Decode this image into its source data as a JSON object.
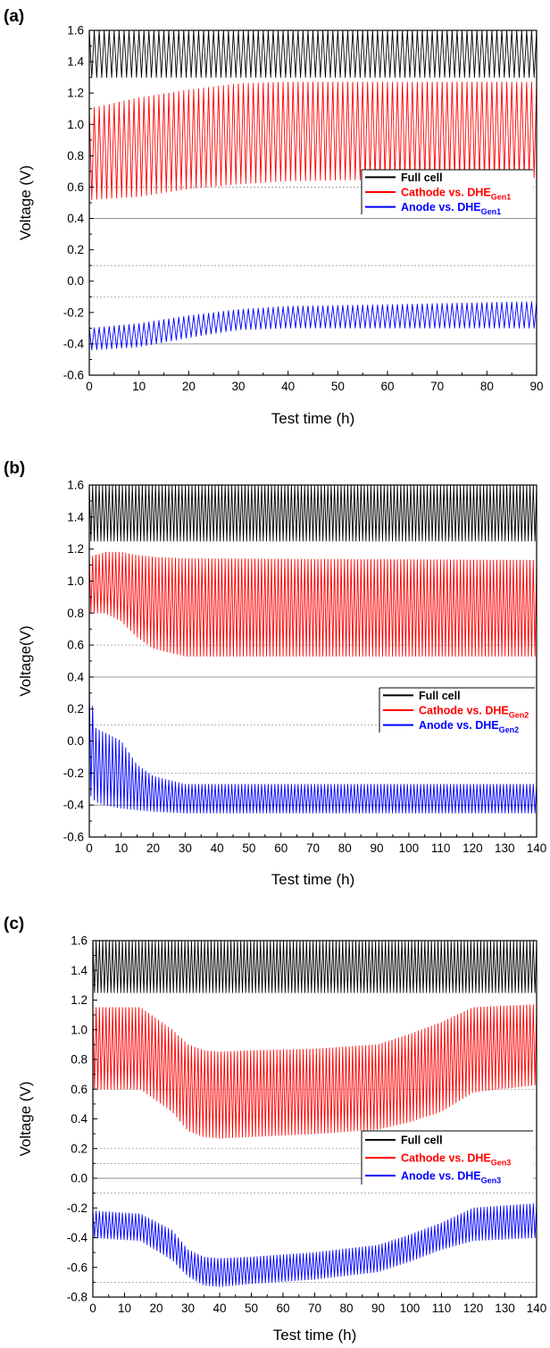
{
  "chart_data": [
    {
      "type": "line",
      "panel_label": "(a)",
      "xlabel": "Test time (h)",
      "ylabel": "Voltage (V)",
      "xlim": [
        0,
        90
      ],
      "ylim": [
        -0.6,
        1.6
      ],
      "xticks": [
        "0",
        "10",
        "20",
        "30",
        "40",
        "50",
        "60",
        "70",
        "80",
        "90"
      ],
      "yticks": [
        "-0.6",
        "-0.4",
        "-0.2",
        "0.0",
        "0.2",
        "0.4",
        "0.6",
        "0.8",
        "1.0",
        "1.2",
        "1.4",
        "1.6"
      ],
      "reference_lines_dotted": [
        -0.1,
        0.1,
        0.6
      ],
      "reference_lines_solid": [
        -0.4,
        0.4
      ],
      "legend_position": "right",
      "cycles": 90,
      "series": [
        {
          "name": "Full cell",
          "subscript": "",
          "color": "#000000",
          "envelope_x": [
            0,
            90
          ],
          "upper": [
            1.6,
            1.6
          ],
          "lower": [
            1.3,
            1.3
          ]
        },
        {
          "name": "Cathode vs. DHE",
          "subscript": "Gen1",
          "color": "#ff0000",
          "envelope_x": [
            0,
            10,
            20,
            30,
            40,
            60,
            90
          ],
          "upper": [
            1.1,
            1.17,
            1.22,
            1.26,
            1.27,
            1.27,
            1.27
          ],
          "lower": [
            0.52,
            0.54,
            0.59,
            0.62,
            0.64,
            0.65,
            0.66
          ]
        },
        {
          "name": "Anode vs. DHE",
          "subscript": "Gen1",
          "color": "#0000ff",
          "envelope_x": [
            0,
            10,
            20,
            30,
            40,
            60,
            90
          ],
          "upper": [
            -0.3,
            -0.27,
            -0.22,
            -0.18,
            -0.16,
            -0.15,
            -0.13
          ],
          "lower": [
            -0.44,
            -0.42,
            -0.36,
            -0.31,
            -0.3,
            -0.3,
            -0.3
          ]
        }
      ]
    },
    {
      "type": "line",
      "panel_label": "(b)",
      "xlabel": "Test time (h)",
      "ylabel": "Voltage(V)",
      "xlim": [
        0,
        140
      ],
      "ylim": [
        -0.6,
        1.6
      ],
      "xticks": [
        "0",
        "10",
        "20",
        "30",
        "40",
        "50",
        "60",
        "70",
        "80",
        "90",
        "100",
        "110",
        "120",
        "130",
        "140"
      ],
      "yticks": [
        "-0.6",
        "-0.4",
        "-0.2",
        "0.0",
        "0.2",
        "0.4",
        "0.6",
        "0.8",
        "1.0",
        "1.2",
        "1.4",
        "1.6"
      ],
      "reference_lines_dotted": [
        -0.2,
        0.1,
        0.6
      ],
      "reference_lines_solid": [
        -0.4,
        0.4
      ],
      "legend_position": "right",
      "cycles": 135,
      "series": [
        {
          "name": "Full cell",
          "subscript": "",
          "color": "#000000",
          "envelope_x": [
            0,
            140
          ],
          "upper": [
            1.6,
            1.6
          ],
          "lower": [
            1.25,
            1.25
          ]
        },
        {
          "name": "Cathode vs. DHE",
          "subscript": "Gen2",
          "color": "#ff0000",
          "envelope_x": [
            0,
            5,
            10,
            15,
            20,
            30,
            140
          ],
          "upper": [
            1.15,
            1.18,
            1.18,
            1.16,
            1.15,
            1.14,
            1.13
          ],
          "lower": [
            0.8,
            0.8,
            0.75,
            0.65,
            0.58,
            0.53,
            0.53
          ]
        },
        {
          "name": "Anode vs. DHE",
          "subscript": "Gen2",
          "color": "#0000ff",
          "envelope_x": [
            0,
            2,
            5,
            10,
            15,
            20,
            30,
            140
          ],
          "upper": [
            0.37,
            0.08,
            0.05,
            0.0,
            -0.15,
            -0.22,
            -0.27,
            -0.27
          ],
          "lower": [
            -0.33,
            -0.38,
            -0.4,
            -0.42,
            -0.43,
            -0.44,
            -0.45,
            -0.45
          ]
        }
      ]
    },
    {
      "type": "line",
      "panel_label": "(c)",
      "xlabel": "Test time (h)",
      "ylabel": "Voltage (V)",
      "xlim": [
        0,
        140
      ],
      "ylim": [
        -0.8,
        1.6
      ],
      "xticks": [
        "0",
        "10",
        "20",
        "30",
        "40",
        "50",
        "60",
        "70",
        "80",
        "90",
        "100",
        "110",
        "120",
        "130",
        "140"
      ],
      "yticks": [
        "-0.8",
        "-0.6",
        "-0.4",
        "-0.2",
        "0.0",
        "0.2",
        "0.4",
        "0.6",
        "0.8",
        "1.0",
        "1.2",
        "1.4",
        "1.6"
      ],
      "reference_lines_dotted": [
        -0.7,
        -0.1,
        0.1,
        0.2,
        0.6
      ],
      "reference_lines_solid": [
        0.0
      ],
      "legend_position": "right",
      "cycles": 135,
      "series": [
        {
          "name": "Full cell",
          "subscript": "",
          "color": "#000000",
          "envelope_x": [
            0,
            140
          ],
          "upper": [
            1.6,
            1.6
          ],
          "lower": [
            1.25,
            1.25
          ]
        },
        {
          "name": "Cathode vs. DHE",
          "subscript": "Gen3",
          "color": "#ff0000",
          "envelope_x": [
            0,
            15,
            25,
            30,
            35,
            40,
            50,
            70,
            90,
            100,
            110,
            120,
            140
          ],
          "upper": [
            1.15,
            1.15,
            1.0,
            0.9,
            0.86,
            0.85,
            0.86,
            0.87,
            0.9,
            0.97,
            1.05,
            1.15,
            1.17
          ],
          "lower": [
            0.6,
            0.6,
            0.45,
            0.32,
            0.28,
            0.27,
            0.28,
            0.3,
            0.33,
            0.38,
            0.45,
            0.58,
            0.63
          ]
        },
        {
          "name": "Anode vs. DHE",
          "subscript": "Gen3",
          "color": "#0000ff",
          "envelope_x": [
            0,
            15,
            25,
            30,
            35,
            40,
            50,
            70,
            90,
            100,
            110,
            120,
            140
          ],
          "upper": [
            -0.22,
            -0.24,
            -0.35,
            -0.48,
            -0.53,
            -0.54,
            -0.53,
            -0.5,
            -0.45,
            -0.38,
            -0.3,
            -0.2,
            -0.17
          ],
          "lower": [
            -0.4,
            -0.42,
            -0.55,
            -0.66,
            -0.72,
            -0.73,
            -0.71,
            -0.68,
            -0.63,
            -0.56,
            -0.48,
            -0.42,
            -0.4
          ]
        }
      ]
    }
  ]
}
